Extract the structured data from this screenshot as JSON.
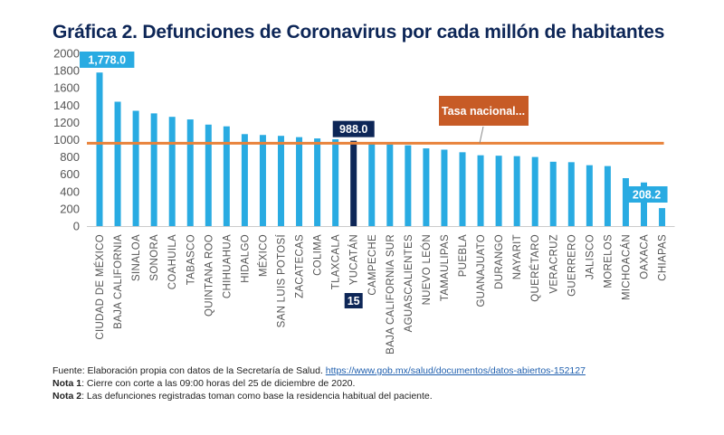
{
  "title": "Gráfica 2. Defunciones de Coronavirus por cada millón de habitantes",
  "notes": {
    "source_prefix": "Fuente: Elaboración propia con datos de la Secretaría de Salud. ",
    "source_link": "https://www.gob.mx/salud/documentos/datos-abiertos-152127",
    "nota1_label": "Nota 1",
    "nota1_text": ": Cierre con corte a las 09:00 horas del 25 de diciembre de 2020.",
    "nota2_label": "Nota 2",
    "nota2_text": ": Las defunciones registradas toman como base la residencia habitual del paciente."
  },
  "colors": {
    "bar": "#29abe2",
    "highlight_bar": "#0d2657",
    "national_line": "#e8823a",
    "callout": "#c75b26",
    "title": "#0d2657",
    "axis": "#cccccc"
  },
  "chart_data": {
    "type": "bar",
    "title": "Gráfica 2. Defunciones de Coronavirus por cada millón de habitantes",
    "xlabel": "",
    "ylabel": "",
    "ylim": [
      0,
      2000
    ],
    "yticks": [
      0,
      200,
      400,
      600,
      800,
      1000,
      1200,
      1400,
      1600,
      1800,
      2000
    ],
    "grid": false,
    "categories": [
      "CIUDAD DE MÉXICO",
      "BAJA CALIFORNIA",
      "SINALOA",
      "SONORA",
      "COAHUILA",
      "TABASCO",
      "QUINTANA ROO",
      "CHIHUAHUA",
      "HIDALGO",
      "MÉXICO",
      "SAN LUIS POTOSÍ",
      "ZACATECAS",
      "COLIMA",
      "TLAXCALA",
      "YUCATÁN",
      "CAMPECHE",
      "BAJA CALIFORNIA SUR",
      "AGUASCALIENTES",
      "NUEVO LEÓN",
      "TAMAULIPAS",
      "PUEBLA",
      "GUANAJUATO",
      "DURANGO",
      "NAYARIT",
      "QUERÉTARO",
      "VERACRUZ",
      "GUERRERO",
      "JALISCO",
      "MORELOS",
      "MICHOACÁN",
      "OAXACA",
      "CHIAPAS"
    ],
    "values": [
      1778.0,
      1440,
      1335,
      1305,
      1265,
      1235,
      1175,
      1155,
      1065,
      1055,
      1045,
      1030,
      1015,
      1005,
      988.0,
      955,
      945,
      935,
      900,
      885,
      855,
      820,
      815,
      810,
      800,
      745,
      740,
      705,
      695,
      555,
      505,
      208.2
    ],
    "highlight_index": 14,
    "highlight_rank_label": "15",
    "data_labels": [
      {
        "index": 0,
        "text": "1,778.0"
      },
      {
        "index": 14,
        "text": "988.0"
      },
      {
        "index": 31,
        "text": "208.2"
      }
    ],
    "reference_line": {
      "name": "Tasa nacional...",
      "value": 960
    }
  }
}
